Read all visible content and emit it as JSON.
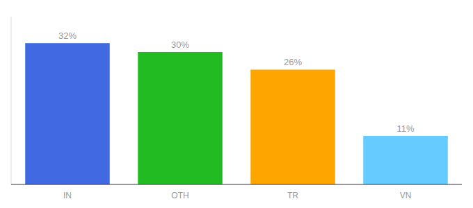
{
  "chart_data": {
    "type": "bar",
    "categories": [
      "IN",
      "OTH",
      "TR",
      "VN"
    ],
    "values": [
      32,
      30,
      26,
      11
    ],
    "value_labels": [
      "32%",
      "30%",
      "26%",
      "11%"
    ],
    "colors": [
      "#4169e1",
      "#22bb22",
      "#ffa500",
      "#66ccff"
    ],
    "ylim": [
      0,
      38
    ],
    "data_labels": true,
    "tick_labels": "x"
  }
}
